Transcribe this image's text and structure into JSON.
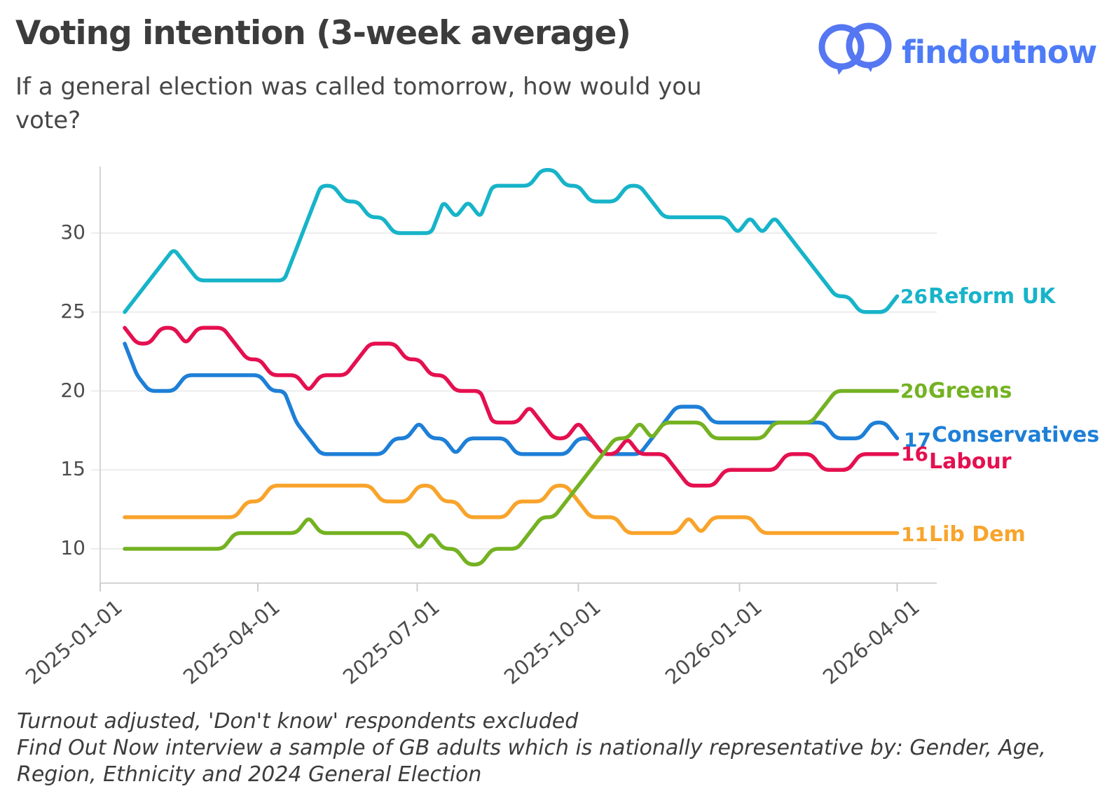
{
  "header": {
    "title": "Voting intention (3-week average)",
    "subtitle": "If a general election was called tomorrow, how would you vote?",
    "brand": {
      "logo_text": "findoutnow",
      "logo_text_color": "#4e7bf7",
      "logo_bubbles_color": "#5677f2"
    }
  },
  "footnotes": {
    "line1": "Turnout adjusted, 'Don't know' respondents excluded",
    "line2": "Find Out Now interview a sample of GB adults which is nationally representative by: Gender, Age, Region, Ethnicity and 2024 General Election"
  },
  "chart_data": {
    "type": "line",
    "title": "Voting intention (3-week average)",
    "question": "If a general election was called tomorrow, how would you vote?",
    "grid": true,
    "legend_position": "line-end-labels-right",
    "x_axis": {
      "tick_labels": [
        "2025-01-01",
        "2025-04-01",
        "2025-07-01",
        "2025-10-01",
        "2026-01-01",
        "2026-04-01"
      ],
      "tick_days_from_start": [
        0,
        90,
        181,
        273,
        365,
        455
      ],
      "tick_rotation_deg": -40
    },
    "y_axis": {
      "tick_labels": [
        10,
        15,
        20,
        25,
        30
      ],
      "visible_range": [
        8,
        34
      ]
    },
    "x_start_date": "2025-01-15",
    "x_step_days": 7,
    "series": [
      {
        "name": "Reform UK",
        "end_label": "26",
        "color": "#17b4c9",
        "values": [
          25,
          26,
          27,
          28,
          29,
          28,
          27,
          27,
          27,
          27,
          27,
          27,
          27,
          27,
          29,
          31,
          33,
          33,
          32,
          32,
          31,
          31,
          30,
          30,
          30,
          30,
          32,
          31,
          32,
          31,
          33,
          33,
          33,
          33,
          34,
          34,
          33,
          33,
          32,
          32,
          32,
          33,
          33,
          32,
          31,
          31,
          31,
          31,
          31,
          31,
          30,
          31,
          30,
          31,
          30,
          29,
          28,
          27,
          26,
          26,
          25,
          25,
          25,
          26
        ]
      },
      {
        "name": "Greens",
        "end_label": "20",
        "color": "#74b222",
        "values": [
          10,
          10,
          10,
          10,
          10,
          10,
          10,
          10,
          10,
          11,
          11,
          11,
          11,
          11,
          11,
          12,
          11,
          11,
          11,
          11,
          11,
          11,
          11,
          11,
          10,
          11,
          10,
          10,
          9,
          9,
          10,
          10,
          10,
          11,
          12,
          12,
          13,
          14,
          15,
          16,
          17,
          17,
          18,
          17,
          18,
          18,
          18,
          18,
          17,
          17,
          17,
          17,
          17,
          18,
          18,
          18,
          18,
          19,
          20,
          20,
          20,
          20,
          20,
          20
        ]
      },
      {
        "name": "Conservatives",
        "end_label": "17",
        "color": "#1e7fd7",
        "values": [
          23,
          21,
          20,
          20,
          20,
          21,
          21,
          21,
          21,
          21,
          21,
          21,
          20,
          20,
          18,
          17,
          16,
          16,
          16,
          16,
          16,
          16,
          17,
          17,
          18,
          17,
          17,
          16,
          17,
          17,
          17,
          17,
          16,
          16,
          16,
          16,
          16,
          17,
          17,
          16,
          16,
          16,
          16,
          17,
          18,
          19,
          19,
          19,
          18,
          18,
          18,
          18,
          18,
          18,
          18,
          18,
          18,
          18,
          17,
          17,
          17,
          18,
          18,
          17
        ]
      },
      {
        "name": "Labour",
        "end_label": "16",
        "color": "#e4104f",
        "values": [
          24,
          23,
          23,
          24,
          24,
          23,
          24,
          24,
          24,
          23,
          22,
          22,
          21,
          21,
          21,
          20,
          21,
          21,
          21,
          22,
          23,
          23,
          23,
          22,
          22,
          21,
          21,
          20,
          20,
          20,
          18,
          18,
          18,
          19,
          18,
          17,
          17,
          18,
          17,
          16,
          16,
          17,
          16,
          16,
          16,
          15,
          14,
          14,
          14,
          15,
          15,
          15,
          15,
          15,
          16,
          16,
          16,
          15,
          15,
          15,
          16,
          16,
          16,
          16
        ]
      },
      {
        "name": "Lib Dem",
        "end_label": "11",
        "color": "#f8a42c",
        "values": [
          12,
          12,
          12,
          12,
          12,
          12,
          12,
          12,
          12,
          12,
          13,
          13,
          14,
          14,
          14,
          14,
          14,
          14,
          14,
          14,
          14,
          13,
          13,
          13,
          14,
          14,
          13,
          13,
          12,
          12,
          12,
          12,
          13,
          13,
          13,
          14,
          14,
          13,
          12,
          12,
          12,
          11,
          11,
          11,
          11,
          11,
          12,
          11,
          12,
          12,
          12,
          12,
          11,
          11,
          11,
          11,
          11,
          11,
          11,
          11,
          11,
          11,
          11,
          11
        ]
      }
    ]
  }
}
